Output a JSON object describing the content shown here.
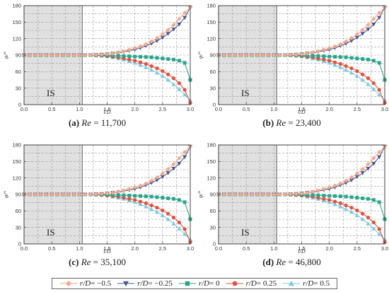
{
  "figure": {
    "legend": [
      {
        "var": "r/D",
        "rest": " = −0.5",
        "color": "#f4a88c",
        "marker": "diamond"
      },
      {
        "var": "r/D",
        "rest": " = −0.25",
        "color": "#4a5a8e",
        "marker": "triangle-down"
      },
      {
        "var": "r/D",
        "rest": " = 0",
        "color": "#2aa58a",
        "marker": "square"
      },
      {
        "var": "r/D",
        "rest": " = 0.25",
        "color": "#e0523e",
        "marker": "circle"
      },
      {
        "var": "r/D",
        "rest": " = 0.5",
        "color": "#7ec8de",
        "marker": "triangle-up"
      }
    ]
  },
  "chart_data": [
    {
      "type": "line",
      "tag": "(a)",
      "re_label": "Re",
      "re_value": " = 11,700",
      "xlabel": "l/D",
      "ylabel": "φ/°",
      "xlim": [
        0,
        3
      ],
      "ylim": [
        0,
        180
      ],
      "xticks": [
        "0.0",
        "0.5",
        "1.0",
        "1.5",
        "2.0",
        "2.5",
        "3.0"
      ],
      "yticks": [
        "0",
        "30",
        "60",
        "90",
        "120",
        "150",
        "180"
      ],
      "region_label": "IS",
      "region_end": 1.05,
      "x": [
        0,
        0.1,
        0.2,
        0.3,
        0.4,
        0.5,
        0.6,
        0.7,
        0.8,
        0.9,
        1.0,
        1.1,
        1.2,
        1.3,
        1.4,
        1.5,
        1.6,
        1.7,
        1.8,
        1.9,
        2.0,
        2.1,
        2.2,
        2.3,
        2.4,
        2.5,
        2.6,
        2.7,
        2.8,
        2.9,
        3.0
      ],
      "series": [
        {
          "name": "r/D = −0.5",
          "values": [
            90,
            90,
            90,
            90,
            90,
            90,
            90,
            90,
            90,
            90,
            90,
            90,
            90,
            90.5,
            91,
            92,
            93,
            95,
            97,
            100,
            103,
            106,
            110,
            115,
            121,
            128,
            136,
            145,
            156,
            167,
            177
          ]
        },
        {
          "name": "r/D = −0.25",
          "values": [
            90,
            90,
            90,
            90,
            90,
            90,
            90,
            90,
            90,
            90,
            90,
            90,
            90,
            90.5,
            91,
            92,
            93,
            94,
            96,
            98,
            100,
            103,
            107,
            111,
            116,
            122,
            129,
            137,
            146,
            158,
            177
          ]
        },
        {
          "name": "r/D = 0",
          "values": [
            90,
            90,
            90,
            90,
            90,
            90,
            90,
            90,
            90,
            90,
            90,
            90,
            90,
            90,
            90,
            89.5,
            89,
            89,
            88.5,
            88,
            87.5,
            87,
            86.5,
            86,
            85,
            84,
            83,
            82,
            80,
            76,
            45
          ]
        },
        {
          "name": "r/D = 0.25",
          "values": [
            90,
            90,
            90,
            90,
            90,
            90,
            90,
            90,
            90,
            90,
            90,
            90,
            90,
            89.5,
            89,
            88,
            87,
            86,
            84,
            82,
            80,
            77,
            74,
            70,
            66,
            61,
            55,
            48,
            39,
            27,
            3
          ]
        },
        {
          "name": "r/D = 0.5",
          "values": [
            90,
            90,
            90,
            90,
            90,
            90,
            90,
            90,
            90,
            90,
            90,
            90,
            90,
            89.5,
            89,
            88,
            86,
            84,
            82,
            79,
            76,
            72,
            68,
            63,
            58,
            52,
            45,
            37,
            28,
            18,
            8
          ]
        }
      ]
    },
    {
      "type": "line",
      "tag": "(b)",
      "re_label": "Re",
      "re_value": " = 23,400",
      "xlabel": "l/D",
      "ylabel": "φ/°",
      "xlim": [
        0,
        3
      ],
      "ylim": [
        0,
        180
      ],
      "xticks": [
        "0.0",
        "0.5",
        "1.0",
        "1.5",
        "2.0",
        "2.5",
        "3.0"
      ],
      "yticks": [
        "0",
        "30",
        "60",
        "90",
        "120",
        "150",
        "180"
      ],
      "region_label": "IS",
      "region_end": 1.05,
      "x": [
        0,
        0.1,
        0.2,
        0.3,
        0.4,
        0.5,
        0.6,
        0.7,
        0.8,
        0.9,
        1.0,
        1.1,
        1.2,
        1.3,
        1.4,
        1.5,
        1.6,
        1.7,
        1.8,
        1.9,
        2.0,
        2.1,
        2.2,
        2.3,
        2.4,
        2.5,
        2.6,
        2.7,
        2.8,
        2.9,
        3.0
      ],
      "series": [
        {
          "name": "r/D = −0.5",
          "values": [
            90,
            90,
            90,
            90,
            90,
            90,
            90,
            90,
            90,
            90,
            90,
            90,
            90,
            90.5,
            91,
            92,
            93,
            95,
            97,
            100,
            103,
            106,
            110,
            115,
            121,
            128,
            136,
            145,
            156,
            167,
            177
          ]
        },
        {
          "name": "r/D = −0.25",
          "values": [
            90,
            90,
            90,
            90,
            90,
            90,
            90,
            90,
            90,
            90,
            90,
            90,
            90,
            90.5,
            91,
            92,
            93,
            94,
            96,
            98,
            100,
            103,
            107,
            111,
            116,
            122,
            129,
            137,
            146,
            158,
            177
          ]
        },
        {
          "name": "r/D = 0",
          "values": [
            90,
            90,
            90,
            90,
            90,
            90,
            90,
            90,
            90,
            90,
            90,
            90,
            90,
            90,
            90,
            89.5,
            89,
            89,
            88.5,
            88,
            87.5,
            87,
            86.5,
            86,
            85,
            84,
            83,
            82,
            80,
            76,
            45
          ]
        },
        {
          "name": "r/D = 0.25",
          "values": [
            90,
            90,
            90,
            90,
            90,
            90,
            90,
            90,
            90,
            90,
            90,
            90,
            90,
            89.5,
            89,
            88,
            87,
            86,
            84,
            82,
            80,
            77,
            74,
            70,
            66,
            61,
            55,
            48,
            39,
            27,
            3
          ]
        },
        {
          "name": "r/D = 0.5",
          "values": [
            90,
            90,
            90,
            90,
            90,
            90,
            90,
            90,
            90,
            90,
            90,
            90,
            90,
            89.5,
            89,
            88,
            86,
            84,
            82,
            79,
            76,
            72,
            68,
            63,
            58,
            52,
            45,
            37,
            28,
            18,
            8
          ]
        }
      ]
    },
    {
      "type": "line",
      "tag": "(c)",
      "re_label": "Re",
      "re_value": " = 35,100",
      "xlabel": "l/D",
      "ylabel": "φ/°",
      "xlim": [
        0,
        3
      ],
      "ylim": [
        0,
        180
      ],
      "xticks": [
        "0.0",
        "0.5",
        "1.0",
        "1.5",
        "2.0",
        "2.5",
        "3.0"
      ],
      "yticks": [
        "0",
        "30",
        "60",
        "90",
        "120",
        "150",
        "180"
      ],
      "region_label": "IS",
      "region_end": 1.05,
      "x": [
        0,
        0.1,
        0.2,
        0.3,
        0.4,
        0.5,
        0.6,
        0.7,
        0.8,
        0.9,
        1.0,
        1.1,
        1.2,
        1.3,
        1.4,
        1.5,
        1.6,
        1.7,
        1.8,
        1.9,
        2.0,
        2.1,
        2.2,
        2.3,
        2.4,
        2.5,
        2.6,
        2.7,
        2.8,
        2.9,
        3.0
      ],
      "series": [
        {
          "name": "r/D = −0.5",
          "values": [
            90,
            90,
            90,
            90,
            90,
            90,
            90,
            90,
            90,
            90,
            90,
            90,
            90,
            90.5,
            91,
            92,
            93,
            95,
            97,
            100,
            103,
            106,
            110,
            115,
            121,
            128,
            136,
            145,
            156,
            167,
            177
          ]
        },
        {
          "name": "r/D = −0.25",
          "values": [
            90,
            90,
            90,
            90,
            90,
            90,
            90,
            90,
            90,
            90,
            90,
            90,
            90,
            90.5,
            91,
            92,
            93,
            94,
            96,
            98,
            100,
            103,
            107,
            111,
            116,
            122,
            129,
            137,
            146,
            158,
            177
          ]
        },
        {
          "name": "r/D = 0",
          "values": [
            90,
            90,
            90,
            90,
            90,
            90,
            90,
            90,
            90,
            90,
            90,
            90,
            90,
            90,
            90,
            89.5,
            89,
            89,
            88.5,
            88,
            87.5,
            87,
            86.5,
            86,
            85,
            84,
            83,
            82,
            80,
            76,
            45
          ]
        },
        {
          "name": "r/D = 0.25",
          "values": [
            90,
            90,
            90,
            90,
            90,
            90,
            90,
            90,
            90,
            90,
            90,
            90,
            90,
            89.5,
            89,
            88,
            87,
            86,
            84,
            82,
            80,
            77,
            74,
            70,
            66,
            61,
            55,
            48,
            39,
            27,
            3
          ]
        },
        {
          "name": "r/D = 0.5",
          "values": [
            90,
            90,
            90,
            90,
            90,
            90,
            90,
            90,
            90,
            90,
            90,
            90,
            90,
            89.5,
            89,
            88,
            86,
            84,
            82,
            79,
            76,
            72,
            68,
            63,
            58,
            52,
            45,
            37,
            28,
            18,
            8
          ]
        }
      ]
    },
    {
      "type": "line",
      "tag": "(d)",
      "re_label": "Re",
      "re_value": " = 46,800",
      "xlabel": "l/D",
      "ylabel": "φ/°",
      "xlim": [
        0,
        3
      ],
      "ylim": [
        0,
        180
      ],
      "xticks": [
        "0.0",
        "0.5",
        "1.0",
        "1.5",
        "2.0",
        "2.5",
        "3.0"
      ],
      "yticks": [
        "0",
        "30",
        "60",
        "90",
        "120",
        "150",
        "180"
      ],
      "region_label": "IS",
      "region_end": 1.05,
      "x": [
        0,
        0.1,
        0.2,
        0.3,
        0.4,
        0.5,
        0.6,
        0.7,
        0.8,
        0.9,
        1.0,
        1.1,
        1.2,
        1.3,
        1.4,
        1.5,
        1.6,
        1.7,
        1.8,
        1.9,
        2.0,
        2.1,
        2.2,
        2.3,
        2.4,
        2.5,
        2.6,
        2.7,
        2.8,
        2.9,
        3.0
      ],
      "series": [
        {
          "name": "r/D = −0.5",
          "values": [
            90,
            90,
            90,
            90,
            90,
            90,
            90,
            90,
            90,
            90,
            90,
            90,
            90,
            90.5,
            91,
            92,
            93,
            95,
            97,
            100,
            103,
            106,
            110,
            115,
            121,
            128,
            136,
            145,
            156,
            167,
            177
          ]
        },
        {
          "name": "r/D = −0.25",
          "values": [
            90,
            90,
            90,
            90,
            90,
            90,
            90,
            90,
            90,
            90,
            90,
            90,
            90,
            90.5,
            91,
            92,
            93,
            94,
            96,
            98,
            100,
            103,
            107,
            111,
            116,
            122,
            129,
            137,
            146,
            158,
            177
          ]
        },
        {
          "name": "r/D = 0",
          "values": [
            90,
            90,
            90,
            90,
            90,
            90,
            90,
            90,
            90,
            90,
            90,
            90,
            90,
            90,
            90,
            89.5,
            89,
            89,
            88.5,
            88,
            87.5,
            87,
            86.5,
            86,
            85,
            84,
            83,
            82,
            80,
            76,
            45
          ]
        },
        {
          "name": "r/D = 0.25",
          "values": [
            90,
            90,
            90,
            90,
            90,
            90,
            90,
            90,
            90,
            90,
            90,
            90,
            90,
            89.5,
            89,
            88,
            87,
            86,
            84,
            82,
            80,
            77,
            74,
            70,
            66,
            61,
            55,
            48,
            39,
            27,
            3
          ]
        },
        {
          "name": "r/D = 0.5",
          "values": [
            90,
            90,
            90,
            90,
            90,
            90,
            90,
            90,
            90,
            90,
            90,
            90,
            90,
            89.5,
            89,
            88,
            86,
            84,
            82,
            79,
            76,
            72,
            68,
            63,
            58,
            52,
            45,
            37,
            28,
            18,
            8
          ]
        }
      ]
    }
  ]
}
